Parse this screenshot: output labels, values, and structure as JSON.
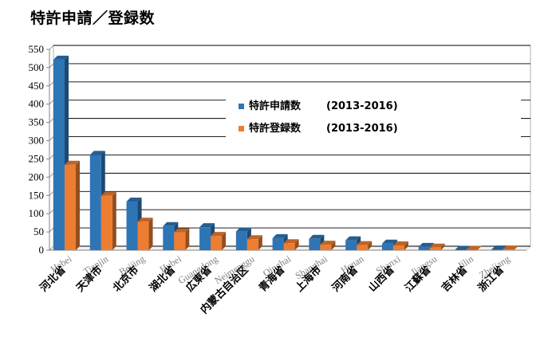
{
  "title": "特許申請／登録数",
  "chart_data": {
    "type": "bar",
    "title": "特許申請／登録数",
    "categories_en": [
      "Hebei",
      "Tianjin",
      "Beijing",
      "Hubei",
      "Guangdong",
      "Neimenggu",
      "Qinghai",
      "Shanghai",
      "Henan",
      "Shanxi",
      "Jiangsu",
      "Jilin",
      "Zhejiang"
    ],
    "categories": [
      "河北省",
      "天津市",
      "北京市",
      "湖北省",
      "広東省",
      "内蒙古自治区",
      "青海省",
      "上海市",
      "河南省",
      "山西省",
      "江蘇省",
      "吉林省",
      "浙江省"
    ],
    "series": [
      {
        "name": "特許申請数",
        "period": "(2013-2016)",
        "color": "#2e75b6",
        "values": [
          522,
          261,
          133,
          66,
          63,
          51,
          33,
          31,
          27,
          18,
          9,
          1,
          2
        ]
      },
      {
        "name": "特許登録数",
        "period": "(2013-2016)",
        "color": "#ed7d31",
        "values": [
          234,
          149,
          78,
          49,
          39,
          30,
          19,
          15,
          14,
          13,
          7,
          1,
          2
        ]
      }
    ],
    "ylim": [
      0,
      550
    ],
    "yticks": [
      0,
      50,
      100,
      150,
      200,
      250,
      300,
      350,
      400,
      450,
      500,
      550
    ],
    "grid": true,
    "legend": "center-right"
  }
}
